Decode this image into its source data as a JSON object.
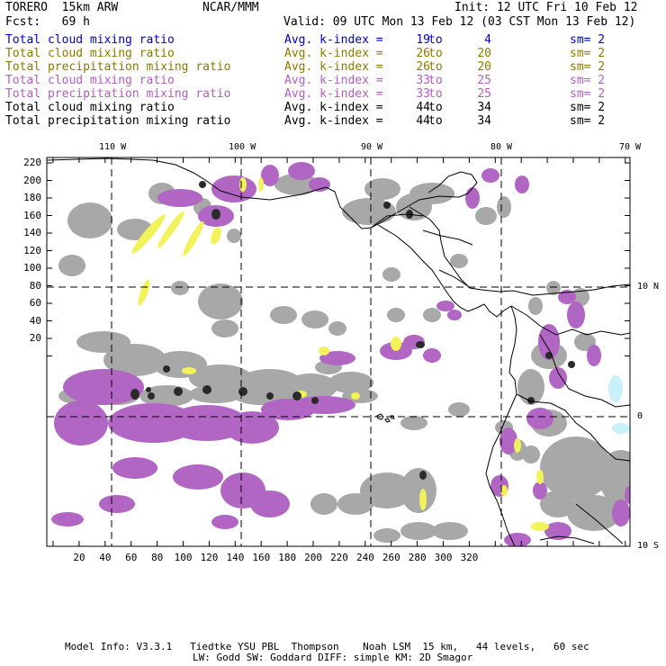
{
  "header": {
    "model": "TORERO  15km ARW",
    "center": "NCAR/MMM",
    "init": "Init: 12 UTC Fri 10 Feb 12",
    "fcst": "Fcst:   69 h",
    "valid": "Valid: 09 UTC Mon 13 Feb 12 (03 CST Mon 13 Feb 12)"
  },
  "legend": [
    {
      "label": "Total cloud mixing ratio",
      "k": "Avg. k-index =",
      "v1": "19",
      "to": "to",
      "v2": "4",
      "sm": "sm= 2",
      "color": "#0000c8"
    },
    {
      "label": "Total cloud mixing ratio",
      "k": "Avg. k-index =",
      "v1": "26",
      "to": "to",
      "v2": "20",
      "sm": "sm= 2",
      "color": "#8a7a00"
    },
    {
      "label": "Total precipitation mixing ratio",
      "k": "Avg. k-index =",
      "v1": "26",
      "to": "to",
      "v2": "20",
      "sm": "sm= 2",
      "color": "#8a7a00"
    },
    {
      "label": "Total cloud mixing ratio",
      "k": "Avg. k-index =",
      "v1": "33",
      "to": "to",
      "v2": "25",
      "sm": "sm= 2",
      "color": "#b060c0"
    },
    {
      "label": "Total precipitation mixing ratio",
      "k": "Avg. k-index =",
      "v1": "33",
      "to": "to",
      "v2": "25",
      "sm": "sm= 2",
      "color": "#b060c0"
    },
    {
      "label": "Total cloud mixing ratio",
      "k": "Avg. k-index =",
      "v1": "44",
      "to": "to",
      "v2": "34",
      "sm": "sm= 2",
      "color": "#000000"
    },
    {
      "label": "Total precipitation mixing ratio",
      "k": "Avg. k-index =",
      "v1": "44",
      "to": "to",
      "v2": "34",
      "sm": "sm= 2",
      "color": "#000000"
    }
  ],
  "map": {
    "lon_labels": [
      "110 W",
      "100 W",
      "90 W",
      "80 W",
      "70 W"
    ],
    "lat_labels": [
      "10 N",
      "0",
      "10 S"
    ],
    "y_ticks": [
      "220",
      "200",
      "180",
      "160",
      "140",
      "120",
      "100",
      "80",
      "60",
      "40",
      "20"
    ],
    "x_ticks": [
      "20",
      "40",
      "60",
      "80",
      "100",
      "120",
      "140",
      "160",
      "180",
      "200",
      "220",
      "240",
      "260",
      "280",
      "300",
      "320"
    ],
    "colors": {
      "gray": "#a8a8a8",
      "purple": "#b266c4",
      "yellow": "#f2f25a",
      "dark": "#2a2a2a",
      "cyan": "#c8f0f8"
    }
  },
  "footer": {
    "line1": "Model Info: V3.3.1   Tiedtke YSU PBL  Thompson    Noah LSM  15 km,   44 levels,   60 sec",
    "line2": "LW: Godd SW: Goddard DIFF: simple KM: 2D Smagor"
  }
}
